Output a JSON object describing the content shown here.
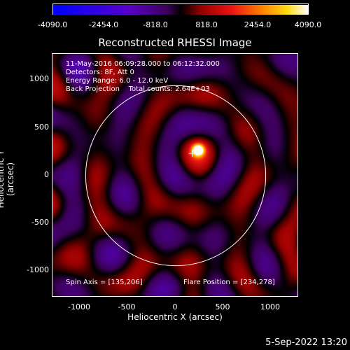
{
  "colorbar": {
    "ticks": [
      "-4090.0",
      "-2454.0",
      "-818.0",
      "818.0",
      "2454.0",
      "4090.0"
    ],
    "min": -4090,
    "max": 4090
  },
  "title": "Reconstructed RHESSI Image",
  "info": {
    "line1": "11-May-2016 06:09:28.000 to 06:12:32.000",
    "line2": "Detectors: 8F, Att 0",
    "line3": "Energy Range: 6.0 - 12.0 keV",
    "line4": "Back Projection    Total counts: 2.64E+03"
  },
  "spin_axis": "Spin Axis = [135,206]",
  "flare_position": "Flare Position = [234,278]",
  "axes": {
    "xlabel": "Heliocentric X (arcsec)",
    "ylabel": "Heliocentric Y (arcsec)",
    "xticks": [
      "-1000",
      "-500",
      "0",
      "500",
      "1000"
    ],
    "yticks": [
      "1000",
      "500",
      "0",
      "-500",
      "-1000"
    ],
    "xrange": [
      -1300,
      1300
    ],
    "yrange": [
      -1300,
      1300
    ]
  },
  "solar_limb_radius_arcsec": 950,
  "flare_marker_arcsec": [
    234,
    278
  ],
  "colors": {
    "background": "#000000",
    "limb": "#ffffff",
    "text": "#ffffff"
  },
  "datestamp": "5-Sep-2022 13:20"
}
